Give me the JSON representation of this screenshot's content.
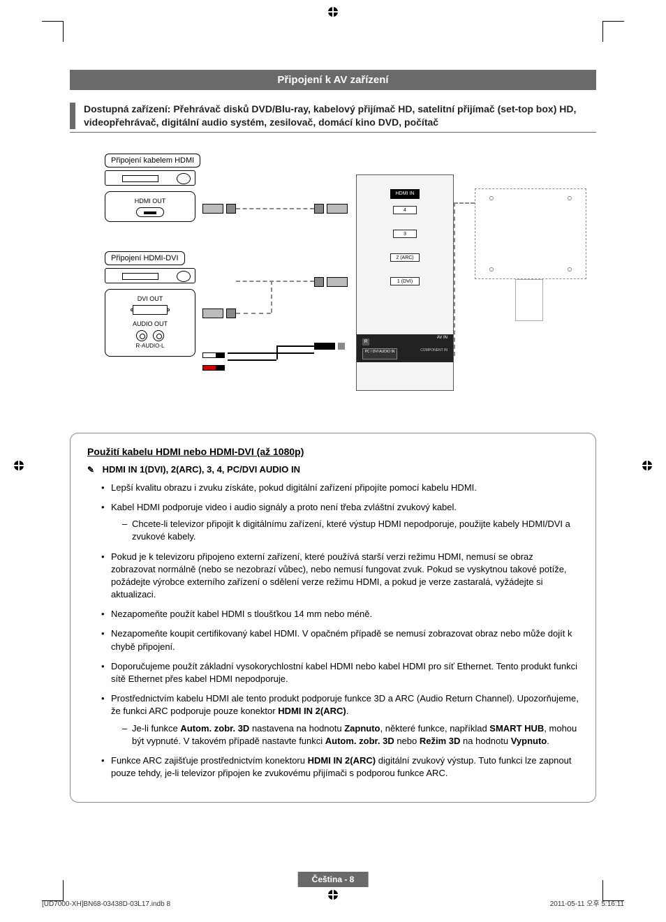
{
  "header": {
    "title": "Připojení k AV zařízení"
  },
  "subhead": "Dostupná zařízení: Přehrávač disků DVD/Blu-ray, kabelový přijímač HD, satelitní přijímač (set-top box) HD, videopřehrávač, digitální audio systém, zesilovač, domácí kino DVD, počítač",
  "diagram": {
    "label_hdmi": "Připojení kabelem HDMI",
    "label_hdmidvi": "Připojení HDMI-DVI",
    "box_hdmi_out": "HDMI OUT",
    "box_dvi_out": "DVI OUT",
    "box_audio_out": "AUDIO OUT",
    "box_audio_sub": "R-AUDIO-L",
    "panel": {
      "hdmi_in": "HDMI IN",
      "port4": "4",
      "port3": "3",
      "port2": "2 (ARC)",
      "port1": "1 (DVI)",
      "av_in": "AV IN",
      "r": "R",
      "component": "COMPONENT IN",
      "pc_dvi": "PC / DVI AUDIO IN"
    }
  },
  "section": {
    "heading": "Použití kabelu HDMI nebo HDMI-DVI (až 1080p)",
    "note": "HDMI IN 1(DVI), 2(ARC), 3, 4, PC/DVI AUDIO IN",
    "bullets": [
      {
        "text": "Lepší kvalitu obrazu i zvuku získáte, pokud digitální zařízení připojíte pomocí kabelu HDMI."
      },
      {
        "text": "Kabel HDMI podporuje video i audio signály a proto není třeba zvláštní zvukový kabel.",
        "sub": [
          "Chcete-li televizor připojit k digitálnímu zařízení, které výstup HDMI nepodporuje, použijte kabely HDMI/DVI a zvukové kabely."
        ]
      },
      {
        "text": "Pokud je k televizoru připojeno externí zařízení, které používá starší verzi režimu HDMI, nemusí se obraz zobrazovat normálně (nebo se nezobrazí vůbec), nebo nemusí fungovat zvuk. Pokud se vyskytnou takové potíže, požádejte výrobce externího zařízení o sdělení verze režimu HDMI, a pokud je verze zastaralá, vyžádejte si aktualizaci."
      },
      {
        "text": "Nezapomeňte použít kabel HDMI s tloušťkou 14 mm nebo méně."
      },
      {
        "text": "Nezapomeňte koupit certifikovaný kabel HDMI. V opačném případě se nemusí zobrazovat obraz nebo může dojít k chybě připojení."
      },
      {
        "text": "Doporučujeme použít základní vysokorychlostní kabel HDMI nebo kabel HDMI pro síť Ethernet. Tento produkt funkci sítě Ethernet přes kabel HDMI nepodporuje."
      },
      {
        "html": "Prostřednictvím kabelu HDMI ale tento produkt podporuje funkce 3D a ARC (Audio Return Channel). Upozorňujeme, že funkci ARC podporuje pouze konektor <b>HDMI IN 2(ARC)</b>.",
        "sub_html": [
          "Je-li funkce <b>Autom. zobr. 3D</b> nastavena na hodnotu <b>Zapnuto</b>, některé funkce, například <b>SMART HUB</b>, mohou být vypnuté. V takovém případě nastavte funkci <b>Autom. zobr. 3D</b> nebo <b>Režim 3D</b> na hodnotu <b>Vypnuto</b>."
        ]
      },
      {
        "html": "Funkce ARC zajišťuje prostřednictvím konektoru <b>HDMI IN 2(ARC)</b> digitální zvukový výstup. Tuto funkci lze zapnout pouze tehdy, je-li televizor připojen ke zvukovému přijímači s podporou funkce ARC."
      }
    ]
  },
  "footer": {
    "page_label": "Čeština - 8",
    "print_left": "[UD7000-XH]BN68-03438D-03L17.indb   8",
    "print_right": "2011-05-11   오후 5:16:11"
  },
  "colors": {
    "bar": "#6a6a6a",
    "border": "#8a8a8a",
    "text": "#000000",
    "bg": "#ffffff"
  }
}
